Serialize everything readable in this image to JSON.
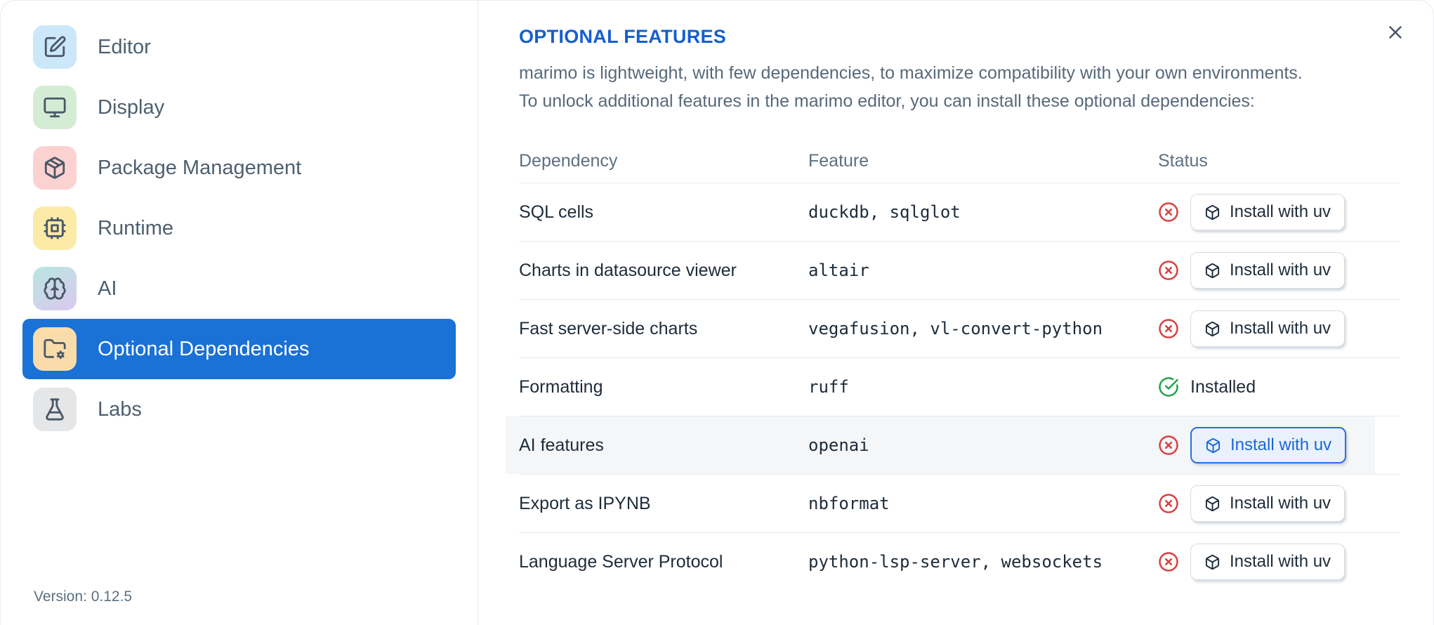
{
  "colors": {
    "accent_blue": "#155fce",
    "selected_blue": "#1a71d6",
    "button_accent_blue": "#1b66d9",
    "danger_red": "#d84040",
    "success_green": "#23a24a",
    "highlight_button_border": "#2b6ee2",
    "highlight_button_bg": "#e9f1fd"
  },
  "sidebar": {
    "items": [
      {
        "label": "Editor",
        "icon": "square-pen-icon",
        "icon_bg": "#cce7f9",
        "selected": false
      },
      {
        "label": "Display",
        "icon": "monitor-icon",
        "icon_bg": "#d5ecd4",
        "selected": false
      },
      {
        "label": "Package Management",
        "icon": "package-icon",
        "icon_bg": "#fbd2d0",
        "selected": false
      },
      {
        "label": "Runtime",
        "icon": "cpu-icon",
        "icon_bg": "#fceaa7",
        "selected": false
      },
      {
        "label": "AI",
        "icon": "brain-icon",
        "icon_bg": "#b7e7e0",
        "icon_bg_to": "#dcc8ef",
        "selected": false
      },
      {
        "label": "Optional Dependencies",
        "icon": "folder-cog-icon",
        "icon_bg": "#f9dcaa",
        "selected": true
      },
      {
        "label": "Labs",
        "icon": "flask-icon",
        "icon_bg": "#e5e6e8",
        "selected": false
      }
    ],
    "version_label": "Version: 0.12.5"
  },
  "dialog": {
    "heading": "OPTIONAL FEATURES",
    "description_lines": [
      "marimo is lightweight, with few dependencies, to maximize compatibility with your own environments.",
      "To unlock additional features in the marimo editor, you can install these optional dependencies:"
    ],
    "close_icon": "x-icon",
    "table": {
      "headers": [
        "Dependency",
        "Feature",
        "Status"
      ],
      "rows": [
        {
          "dependency": "SQL cells",
          "feature": "duckdb, sqlglot",
          "installed": false,
          "status_icon": "circle-x-icon",
          "action_icon": "box-icon",
          "action_label": "Install with uv",
          "highlighted": false
        },
        {
          "dependency": "Charts in datasource viewer",
          "feature": "altair",
          "installed": false,
          "status_icon": "circle-x-icon",
          "action_icon": "box-icon",
          "action_label": "Install with uv",
          "highlighted": false
        },
        {
          "dependency": "Fast server-side charts",
          "feature": "vegafusion, vl-convert-python",
          "installed": false,
          "status_icon": "circle-x-icon",
          "action_icon": "box-icon",
          "action_label": "Install with uv",
          "highlighted": false
        },
        {
          "dependency": "Formatting",
          "feature": "ruff",
          "installed": true,
          "status_icon": "circle-check-icon",
          "status_label": "Installed",
          "highlighted": false
        },
        {
          "dependency": "AI features",
          "feature": "openai",
          "installed": false,
          "status_icon": "circle-x-icon",
          "action_icon": "box-icon",
          "action_label": "Install with uv",
          "highlighted": true
        },
        {
          "dependency": "Export as IPYNB",
          "feature": "nbformat",
          "installed": false,
          "status_icon": "circle-x-icon",
          "action_icon": "box-icon",
          "action_label": "Install with uv",
          "highlighted": false
        },
        {
          "dependency": "Language Server Protocol",
          "feature": "python-lsp-server, websockets",
          "installed": false,
          "status_icon": "circle-x-icon",
          "action_icon": "box-icon",
          "action_label": "Install with uv",
          "highlighted": false
        }
      ]
    }
  }
}
